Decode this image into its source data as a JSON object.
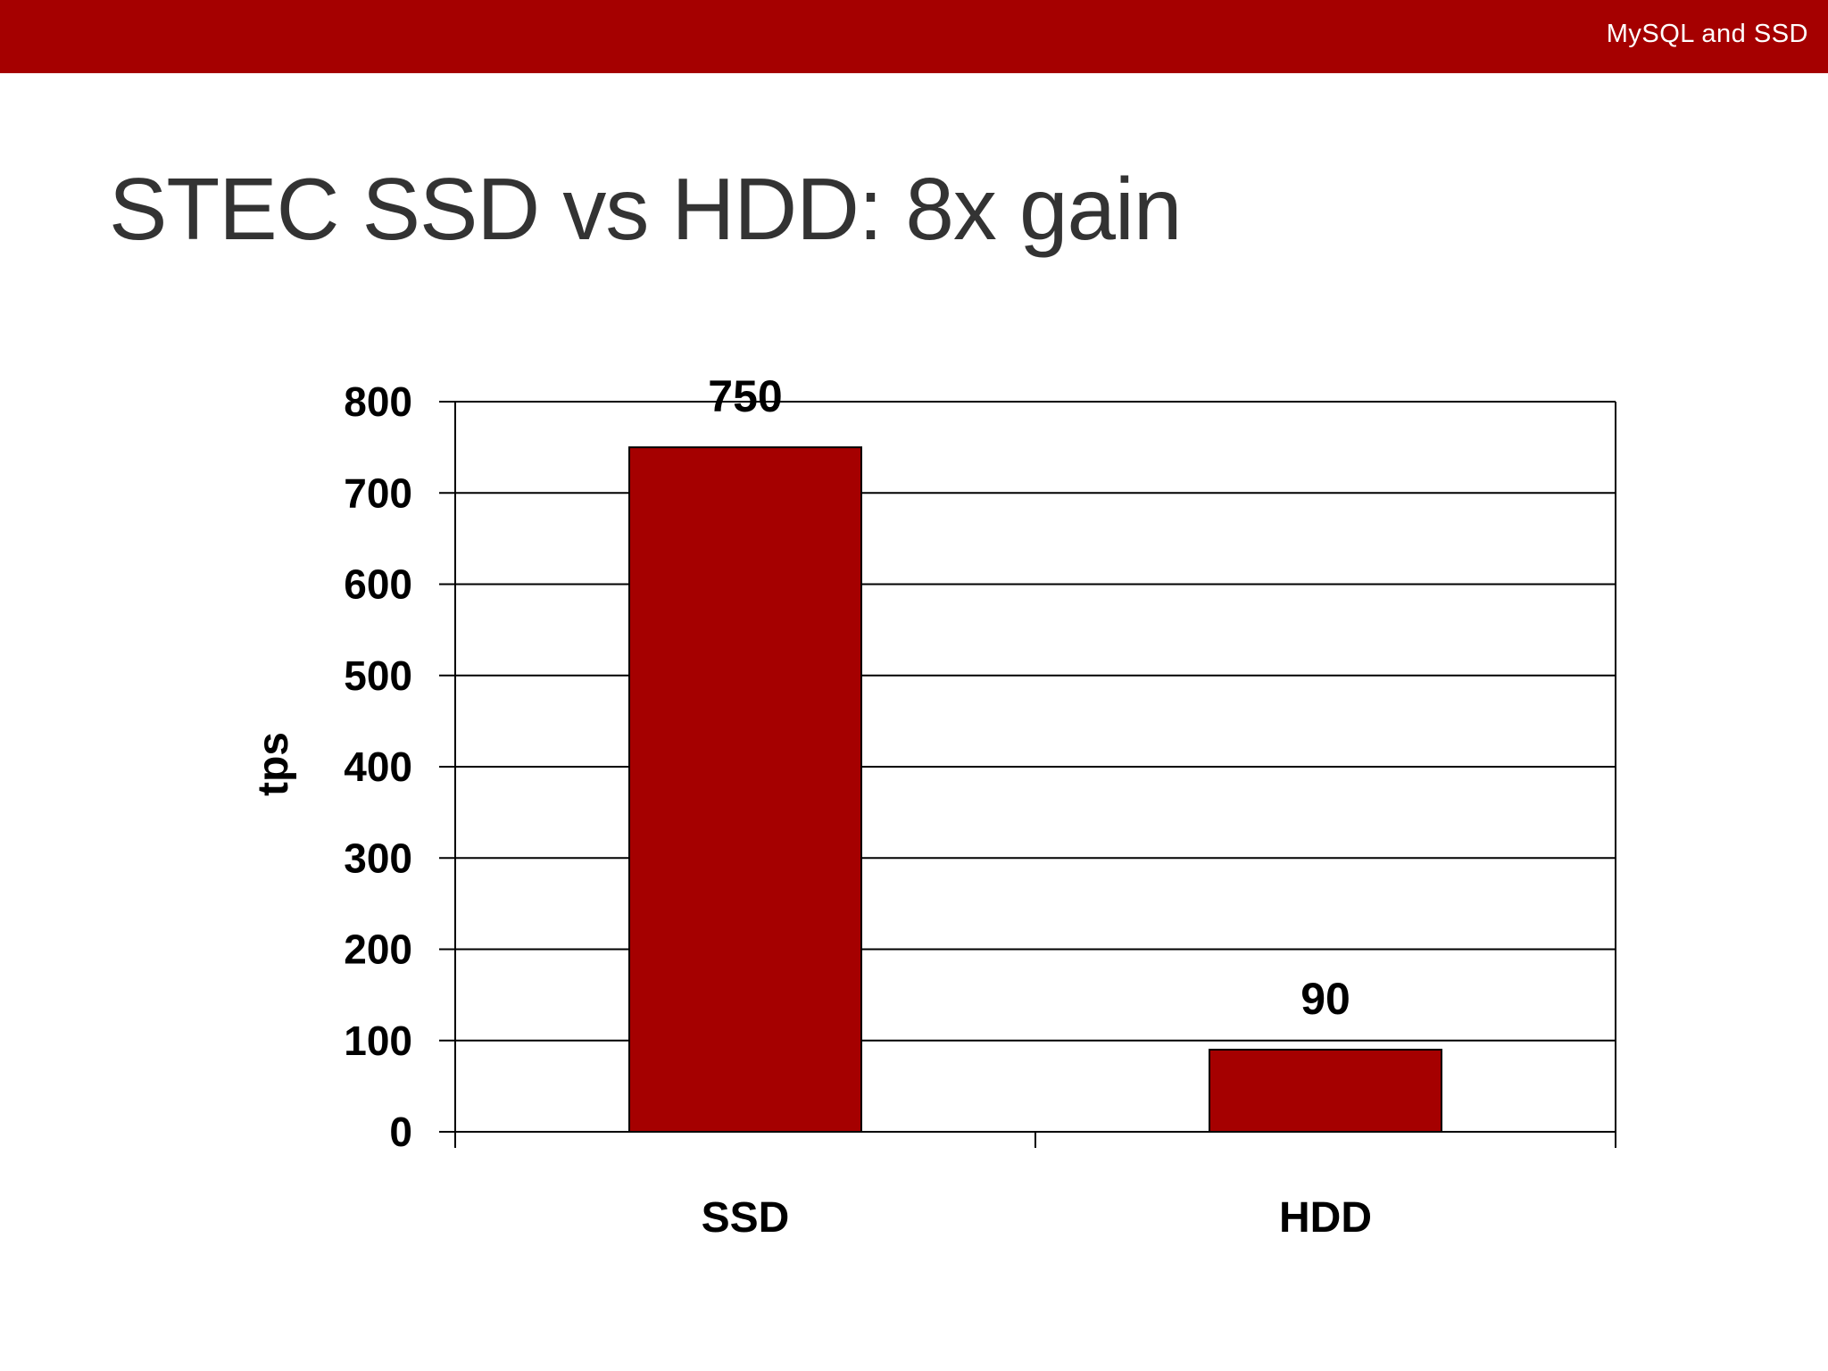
{
  "header": {
    "label": "MySQL and SSD"
  },
  "slide": {
    "title": "STEC SSD vs HDD: 8x gain"
  },
  "colors": {
    "accent": "#a50000",
    "bar": "#a50000",
    "gridline": "#000000"
  },
  "chart_data": {
    "type": "bar",
    "categories": [
      "SSD",
      "HDD"
    ],
    "values": [
      750,
      90
    ],
    "data_labels": [
      "750",
      "90"
    ],
    "ylabel": "tps",
    "ylim": [
      0,
      800
    ],
    "yticks": [
      "0",
      "100",
      "200",
      "300",
      "400",
      "500",
      "600",
      "700",
      "800"
    ],
    "grid": true,
    "legend": "none"
  }
}
